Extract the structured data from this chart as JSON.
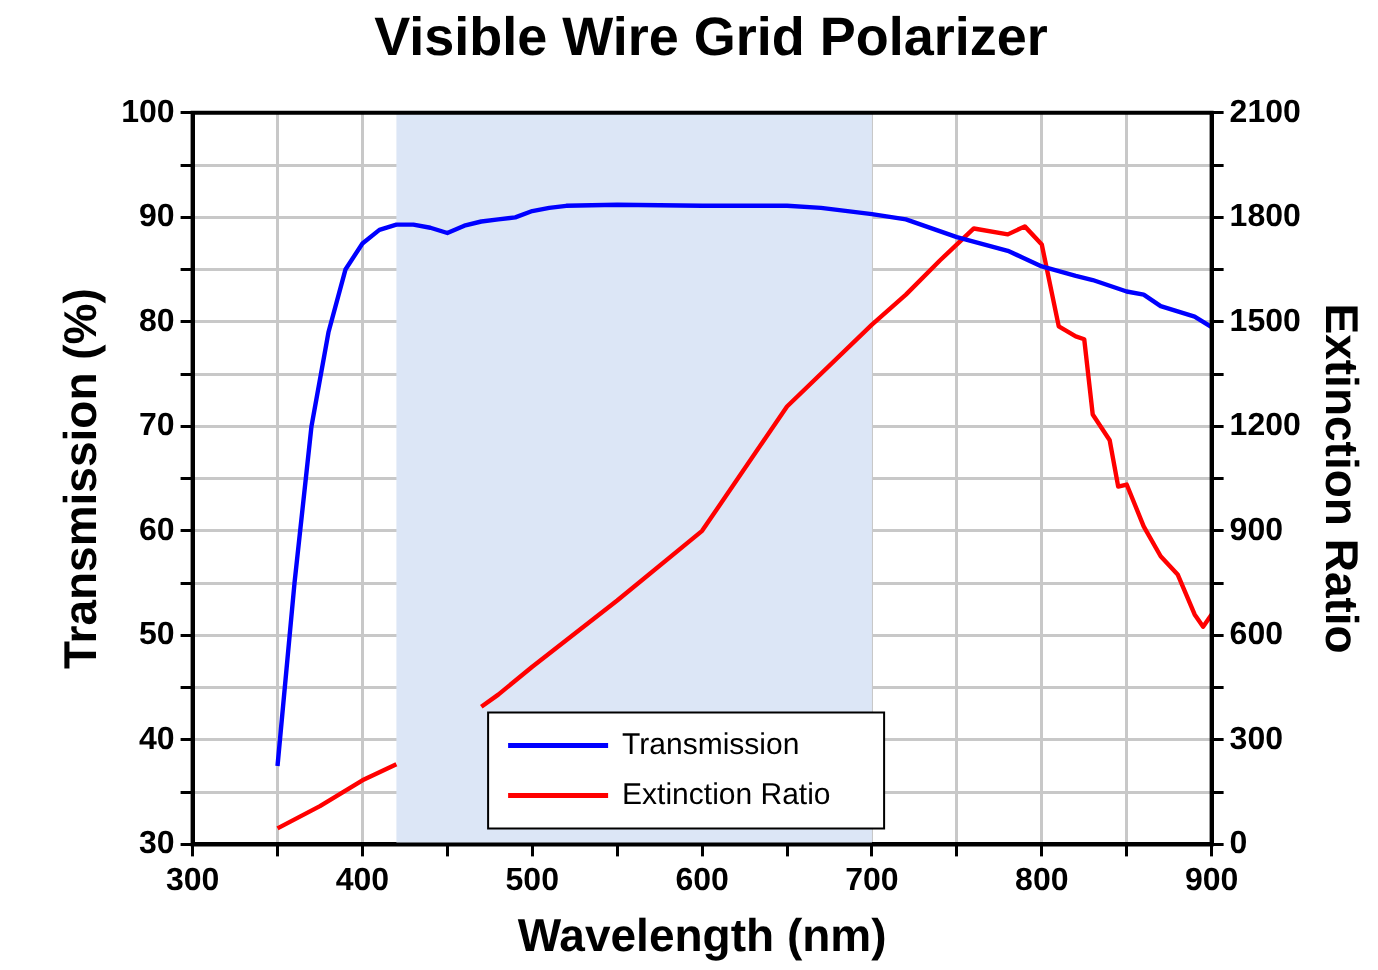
{
  "chart_data": {
    "type": "line",
    "title": "Visible Wire Grid Polarizer",
    "xlabel": "Wavelength (nm)",
    "ylabel": "Transmission (%)",
    "y2label": "Extinction Ratio",
    "series": [
      {
        "name": "Transmission",
        "color": "#0000ff",
        "x": [
          350,
          360,
          370,
          380,
          390,
          400,
          410,
          420,
          430,
          440,
          450,
          460,
          470,
          480,
          490,
          500,
          510,
          520,
          550,
          600,
          650,
          670,
          700,
          720,
          750,
          780,
          800,
          820,
          830,
          850,
          860,
          870,
          890,
          900
        ],
        "values": [
          37.5,
          55,
          70,
          79,
          85,
          87.5,
          88.8,
          89.3,
          89.3,
          89,
          88.5,
          89.2,
          89.6,
          89.8,
          90,
          90.6,
          90.9,
          91.1,
          91.2,
          91.1,
          91.1,
          90.9,
          90.3,
          89.8,
          88.1,
          86.8,
          85.3,
          84.4,
          84,
          82.9,
          82.6,
          81.5,
          80.5,
          79.5
        ]
      },
      {
        "name": "Extinction Ratio",
        "color": "#ff0000",
        "axis": "y2",
        "x": [
          350,
          375,
          400,
          420,
          450,
          470,
          480,
          500,
          550,
          600,
          650,
          700,
          720,
          740,
          760,
          780,
          790,
          800,
          810,
          820,
          825,
          830,
          840,
          845,
          850,
          860,
          870,
          880,
          890,
          895,
          900
        ],
        "values": [
          46,
          110,
          184,
          230,
          null,
          395,
          430,
          510,
          700,
          900,
          1257,
          1492,
          1578,
          1676,
          1768,
          1751,
          1774,
          1722,
          1487,
          1458,
          1450,
          1234,
          1160,
          1027,
          1033,
          913,
          827,
          775,
          660,
          625,
          660
        ]
      }
    ],
    "xlim": [
      300,
      900
    ],
    "xticks": [
      300,
      {
        "value": 350,
        "label": null
      },
      400,
      {
        "value": 450,
        "label": null
      },
      500,
      {
        "value": 550,
        "label": null
      },
      600,
      {
        "value": 650,
        "label": null
      },
      700,
      {
        "value": 750,
        "label": null
      },
      800,
      {
        "value": 850,
        "label": null
      },
      900
    ],
    "ylim": [
      30,
      100
    ],
    "yticks": [
      30,
      {
        "value": 35,
        "label": null
      },
      40,
      {
        "value": 45,
        "label": null
      },
      50,
      {
        "value": 55,
        "label": null
      },
      60,
      {
        "value": 65,
        "label": null
      },
      70,
      {
        "value": 75,
        "label": null
      },
      80,
      {
        "value": 85,
        "label": null
      },
      90,
      {
        "value": 95,
        "label": null
      },
      100
    ],
    "y2lim": [
      0,
      2100
    ],
    "y2ticks": [
      0,
      {
        "value": 150,
        "label": null
      },
      300,
      {
        "value": 450,
        "label": null
      },
      600,
      {
        "value": 750,
        "label": null
      },
      900,
      {
        "value": 1050,
        "label": null
      },
      1200,
      {
        "value": 1350,
        "label": null
      },
      1500,
      {
        "value": 1650,
        "label": null
      },
      1800,
      {
        "value": 1950,
        "label": null
      },
      2100
    ],
    "bands": [
      {
        "axis": "x",
        "from": 420,
        "to": 700,
        "color": "#dce6f6"
      }
    ],
    "grid": true,
    "legend": "bottom",
    "marker": "none",
    "line_style": "solid"
  }
}
